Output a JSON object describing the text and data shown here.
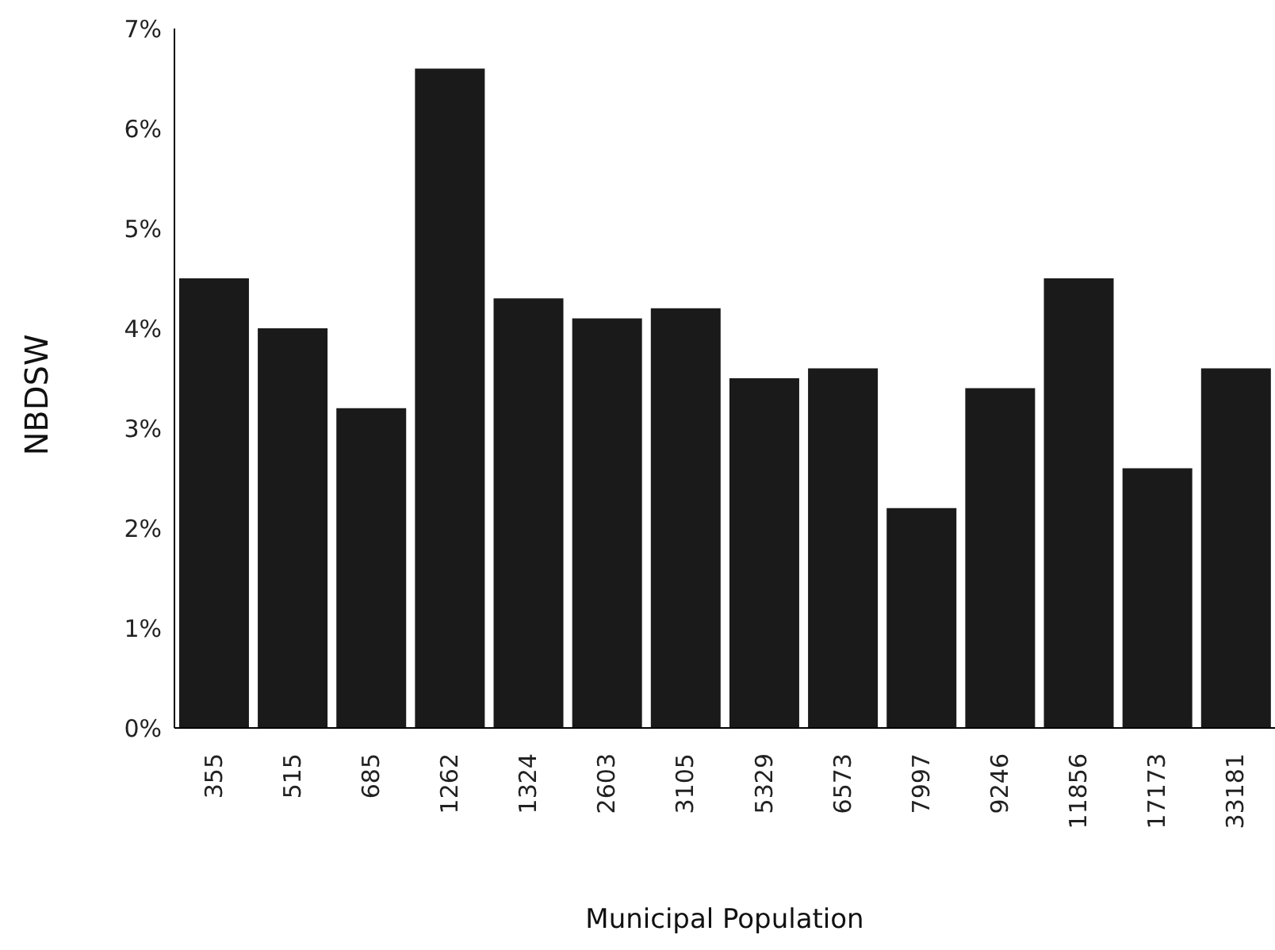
{
  "chart_data": {
    "type": "bar",
    "xlabel": "Municipal Population",
    "ylabel": "NBDSW",
    "categories": [
      "355",
      "515",
      "685",
      "1262",
      "1324",
      "2603",
      "3105",
      "5329",
      "6573",
      "7997",
      "9246",
      "11856",
      "17173",
      "33181"
    ],
    "values": [
      4.5,
      4.0,
      3.2,
      6.6,
      4.3,
      4.1,
      4.2,
      3.5,
      3.6,
      2.2,
      3.4,
      4.5,
      2.6,
      3.6
    ],
    "color": "#1a1a1a",
    "ylim": [
      0,
      7
    ],
    "yticks": [
      {
        "value": 0,
        "label": "0%"
      },
      {
        "value": 1,
        "label": "1%"
      },
      {
        "value": 2,
        "label": "2%"
      },
      {
        "value": 3,
        "label": "3%"
      },
      {
        "value": 4,
        "label": "4%"
      },
      {
        "value": 5,
        "label": "5%"
      },
      {
        "value": 6,
        "label": "6%"
      },
      {
        "value": 7,
        "label": "7%"
      }
    ],
    "grid": false,
    "legend": false
  }
}
